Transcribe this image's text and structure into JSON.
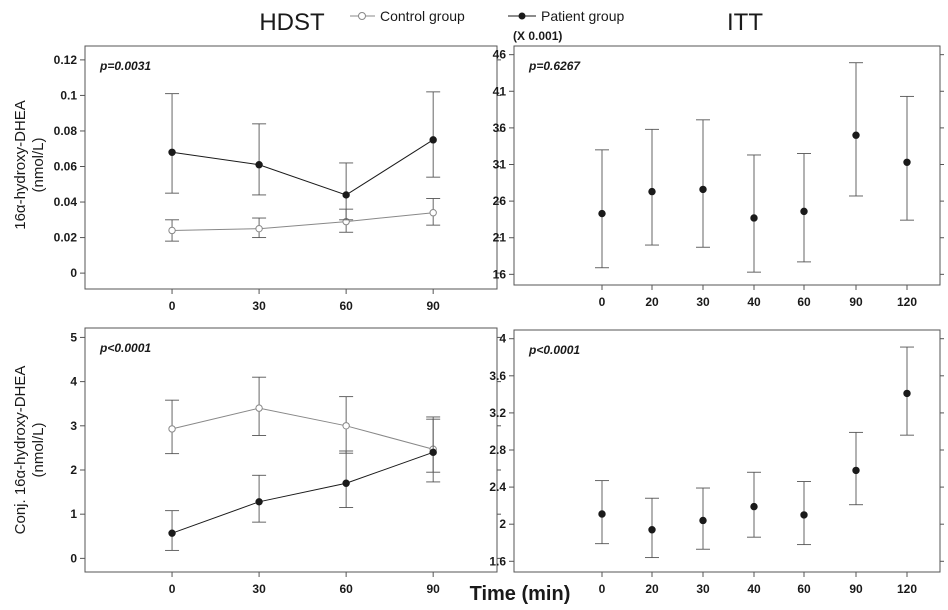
{
  "figure": {
    "left_title": "HDST",
    "right_title": "ITT",
    "xlabel": "Time (min)",
    "legend": [
      {
        "name": "Control group",
        "marker": "open-circle"
      },
      {
        "name": "Patient group",
        "marker": "filled-circle"
      }
    ],
    "colors": {
      "control": "#888888",
      "patient": "#1a1a1a",
      "axis": "#555555",
      "error": "#555555"
    }
  },
  "chart_data": [
    {
      "type": "line",
      "title": "",
      "xlabel": "",
      "ylabel": [
        "16α-hydroxy-DHEA",
        "(nmol/L)"
      ],
      "annotation": "p=0.0031",
      "x": [
        0,
        30,
        60,
        90
      ],
      "xticks": [
        0,
        30,
        60,
        90
      ],
      "xlim": [
        -30,
        112
      ],
      "ylim": [
        -0.005,
        0.125
      ],
      "yticks": [
        0,
        0.02,
        0.04,
        0.06,
        0.08,
        0.1,
        0.12
      ],
      "yticklabels": [
        "0",
        "0.02",
        "0.04",
        "0.06",
        "0.08",
        "0.1",
        "0.12"
      ],
      "series": [
        {
          "name": "Control group",
          "marker": "open",
          "values": [
            0.024,
            0.025,
            0.029,
            0.034
          ],
          "lower": [
            0.018,
            0.02,
            0.023,
            0.027
          ],
          "upper": [
            0.03,
            0.031,
            0.036,
            0.042
          ]
        },
        {
          "name": "Patient group",
          "marker": "filled",
          "values": [
            0.068,
            0.061,
            0.044,
            0.075
          ],
          "lower": [
            0.045,
            0.044,
            0.03,
            0.054
          ],
          "upper": [
            0.101,
            0.084,
            0.062,
            0.102
          ]
        }
      ]
    },
    {
      "type": "scatter",
      "title": "",
      "xlabel": "",
      "ylabel": [],
      "multiplier": "(X 0.001)",
      "annotation": "p=0.6267",
      "categories": [
        "0",
        "20",
        "30",
        "40",
        "60",
        "90",
        "120"
      ],
      "ylim": [
        15.5,
        46.5
      ],
      "yticks": [
        16,
        21,
        26,
        31,
        36,
        41,
        46
      ],
      "yticklabels": [
        "16",
        "21",
        "26",
        "31",
        "36",
        "41",
        "46"
      ],
      "series": [
        {
          "name": "Patient group",
          "marker": "filled",
          "values": [
            24.3,
            27.3,
            27.6,
            23.7,
            24.6,
            35.0,
            31.3
          ],
          "lower": [
            16.9,
            20.0,
            19.7,
            16.3,
            17.7,
            26.7,
            23.4
          ],
          "upper": [
            33.0,
            35.8,
            37.1,
            32.3,
            32.5,
            44.9,
            40.3
          ]
        }
      ]
    },
    {
      "type": "line",
      "title": "",
      "xlabel": "",
      "ylabel": [
        "Conj. 16α-hydroxy-DHEA",
        "(nmol/L)"
      ],
      "annotation": "p<0.0001",
      "x": [
        0,
        30,
        60,
        90
      ],
      "xticks": [
        0,
        30,
        60,
        90
      ],
      "xlim": [
        -30,
        112
      ],
      "ylim": [
        -0.15,
        5.1
      ],
      "yticks": [
        0,
        1,
        2,
        3,
        4,
        5
      ],
      "yticklabels": [
        "0",
        "1",
        "2",
        "3",
        "4",
        "5"
      ],
      "series": [
        {
          "name": "Control group",
          "marker": "open",
          "values": [
            2.93,
            3.4,
            3.0,
            2.47
          ],
          "lower": [
            2.37,
            2.78,
            2.38,
            1.73
          ],
          "upper": [
            3.58,
            4.1,
            3.66,
            3.2
          ]
        },
        {
          "name": "Patient group",
          "marker": "filled",
          "values": [
            0.57,
            1.28,
            1.7,
            2.4
          ],
          "lower": [
            0.18,
            0.82,
            1.15,
            1.95
          ],
          "upper": [
            1.08,
            1.88,
            2.43,
            3.15
          ]
        }
      ]
    },
    {
      "type": "scatter",
      "title": "",
      "xlabel": "",
      "ylabel": [],
      "annotation": "p<0.0001",
      "categories": [
        "0",
        "20",
        "30",
        "40",
        "60",
        "90",
        "120"
      ],
      "ylim": [
        1.56,
        4.04
      ],
      "yticks": [
        1.6,
        2,
        2.4,
        2.8,
        3.2,
        3.6,
        4
      ],
      "yticklabels": [
        "1.6",
        "2",
        "2.4",
        "2.8",
        "3.2",
        "3.6",
        "4"
      ],
      "series": [
        {
          "name": "Patient group",
          "marker": "filled",
          "values": [
            2.11,
            1.94,
            2.04,
            2.19,
            2.1,
            2.58,
            3.41
          ],
          "lower": [
            1.79,
            1.64,
            1.73,
            1.86,
            1.78,
            2.21,
            2.96
          ],
          "upper": [
            2.47,
            2.28,
            2.39,
            2.56,
            2.46,
            2.99,
            3.91
          ]
        }
      ]
    }
  ]
}
